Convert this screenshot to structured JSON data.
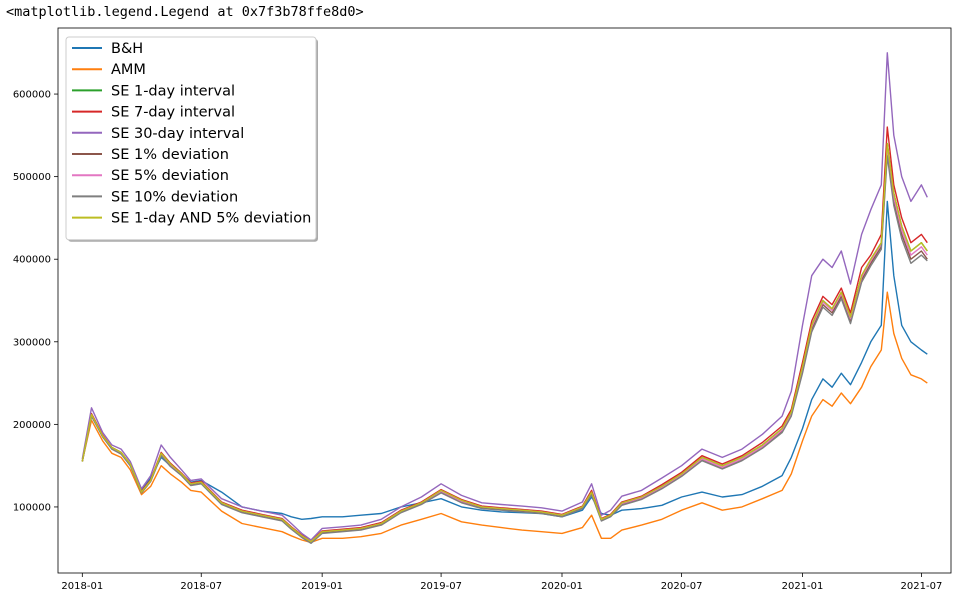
{
  "header": {
    "repr": "<matplotlib.legend.Legend at 0x7f3b78ffe8d0>"
  },
  "chart_data": {
    "type": "line",
    "title": "",
    "xlabel": "",
    "ylabel": "",
    "xlim": [
      "2017-11-25",
      "2021-08-15"
    ],
    "ylim": [
      20000,
      680000
    ],
    "grid": false,
    "legend_position": "top-left",
    "x_ticks": [
      "2018-01",
      "2018-07",
      "2019-01",
      "2019-07",
      "2020-01",
      "2020-07",
      "2021-01",
      "2021-07"
    ],
    "y_ticks": [
      100000,
      200000,
      300000,
      400000,
      500000,
      600000
    ],
    "y_tick_labels": [
      "100000",
      "200000",
      "300000",
      "400000",
      "500000",
      "600000"
    ],
    "x": [
      "2018-01-01",
      "2018-01-15",
      "2018-02-01",
      "2018-02-15",
      "2018-03-01",
      "2018-03-15",
      "2018-04-01",
      "2018-04-15",
      "2018-05-01",
      "2018-05-15",
      "2018-06-01",
      "2018-06-15",
      "2018-07-01",
      "2018-08-01",
      "2018-09-01",
      "2018-10-01",
      "2018-11-01",
      "2018-11-15",
      "2018-12-01",
      "2018-12-15",
      "2019-01-01",
      "2019-02-01",
      "2019-03-01",
      "2019-04-01",
      "2019-05-01",
      "2019-06-01",
      "2019-07-01",
      "2019-08-01",
      "2019-09-01",
      "2019-10-01",
      "2019-11-01",
      "2019-12-01",
      "2020-01-01",
      "2020-02-01",
      "2020-02-15",
      "2020-03-01",
      "2020-03-15",
      "2020-04-01",
      "2020-05-01",
      "2020-06-01",
      "2020-07-01",
      "2020-08-01",
      "2020-09-01",
      "2020-10-01",
      "2020-11-01",
      "2020-12-01",
      "2020-12-15",
      "2021-01-01",
      "2021-01-15",
      "2021-02-01",
      "2021-02-15",
      "2021-03-01",
      "2021-03-15",
      "2021-04-01",
      "2021-04-15",
      "2021-05-01",
      "2021-05-10",
      "2021-05-20",
      "2021-06-01",
      "2021-06-15",
      "2021-07-01",
      "2021-07-10"
    ],
    "series": [
      {
        "name": "B&H",
        "color": "#1f77b4",
        "values": [
          155000,
          210000,
          185000,
          170000,
          165000,
          150000,
          120000,
          135000,
          160000,
          150000,
          140000,
          130000,
          132000,
          118000,
          100000,
          95000,
          92000,
          88000,
          85000,
          86000,
          88000,
          88000,
          90000,
          92000,
          100000,
          105000,
          110000,
          100000,
          96000,
          94000,
          93000,
          92000,
          88000,
          96000,
          112000,
          92000,
          90000,
          96000,
          98000,
          102000,
          112000,
          118000,
          112000,
          115000,
          125000,
          138000,
          160000,
          195000,
          230000,
          255000,
          245000,
          262000,
          248000,
          275000,
          300000,
          320000,
          470000,
          380000,
          320000,
          300000,
          290000,
          285000
        ]
      },
      {
        "name": "AMM",
        "color": "#ff7f0e",
        "values": [
          155000,
          205000,
          180000,
          165000,
          160000,
          145000,
          115000,
          125000,
          150000,
          140000,
          130000,
          120000,
          118000,
          95000,
          80000,
          75000,
          70000,
          65000,
          60000,
          57000,
          62000,
          62000,
          64000,
          68000,
          78000,
          85000,
          92000,
          82000,
          78000,
          75000,
          72000,
          70000,
          68000,
          75000,
          90000,
          62000,
          62000,
          72000,
          78000,
          85000,
          96000,
          105000,
          96000,
          100000,
          110000,
          120000,
          140000,
          180000,
          210000,
          230000,
          222000,
          238000,
          225000,
          245000,
          270000,
          290000,
          360000,
          310000,
          280000,
          260000,
          255000,
          250000
        ]
      },
      {
        "name": "SE 1-day interval",
        "color": "#2ca02c",
        "values": [
          155000,
          212000,
          186000,
          172000,
          166000,
          152000,
          118000,
          132000,
          165000,
          152000,
          140000,
          128000,
          130000,
          105000,
          95000,
          90000,
          85000,
          75000,
          65000,
          58000,
          70000,
          72000,
          74000,
          80000,
          95000,
          105000,
          120000,
          108000,
          100000,
          98000,
          96000,
          94000,
          90000,
          100000,
          118000,
          85000,
          90000,
          105000,
          112000,
          125000,
          140000,
          160000,
          150000,
          160000,
          175000,
          195000,
          215000,
          270000,
          320000,
          350000,
          340000,
          360000,
          330000,
          380000,
          400000,
          420000,
          540000,
          480000,
          440000,
          410000,
          420000,
          410000
        ]
      },
      {
        "name": "SE 7-day interval",
        "color": "#d62728",
        "values": [
          155000,
          213000,
          187000,
          172000,
          166000,
          152000,
          119000,
          133000,
          166000,
          153000,
          141000,
          129000,
          131000,
          106000,
          96000,
          91000,
          86000,
          76000,
          66000,
          59000,
          71000,
          73000,
          75000,
          81000,
          96000,
          106000,
          121000,
          109000,
          101000,
          99000,
          97000,
          95000,
          91000,
          101000,
          120000,
          86000,
          91000,
          106000,
          113000,
          127000,
          142000,
          162000,
          152000,
          162000,
          178000,
          198000,
          218000,
          275000,
          325000,
          355000,
          345000,
          365000,
          335000,
          390000,
          405000,
          430000,
          560000,
          490000,
          450000,
          420000,
          430000,
          420000
        ]
      },
      {
        "name": "SE 30-day interval",
        "color": "#9467bd",
        "values": [
          158000,
          220000,
          190000,
          175000,
          170000,
          155000,
          122000,
          138000,
          175000,
          160000,
          145000,
          132000,
          134000,
          110000,
          100000,
          95000,
          90000,
          80000,
          68000,
          60000,
          74000,
          76000,
          78000,
          85000,
          100000,
          112000,
          128000,
          114000,
          105000,
          103000,
          101000,
          99000,
          95000,
          106000,
          128000,
          90000,
          96000,
          113000,
          120000,
          135000,
          150000,
          170000,
          160000,
          170000,
          188000,
          210000,
          240000,
          320000,
          380000,
          400000,
          390000,
          410000,
          370000,
          430000,
          460000,
          490000,
          650000,
          550000,
          500000,
          470000,
          490000,
          475000
        ]
      },
      {
        "name": "SE 1% deviation",
        "color": "#8c564b",
        "values": [
          155000,
          211000,
          185000,
          171000,
          165000,
          151000,
          117000,
          131000,
          163000,
          150000,
          139000,
          127000,
          129000,
          104000,
          94000,
          89000,
          84000,
          74000,
          64000,
          57000,
          69000,
          71000,
          73000,
          79000,
          94000,
          104000,
          118000,
          106000,
          99000,
          97000,
          95000,
          93000,
          89000,
          99000,
          116000,
          84000,
          89000,
          103000,
          110000,
          123000,
          138000,
          157000,
          147000,
          157000,
          172000,
          192000,
          212000,
          265000,
          315000,
          345000,
          335000,
          355000,
          325000,
          375000,
          395000,
          415000,
          530000,
          470000,
          430000,
          400000,
          410000,
          400000
        ]
      },
      {
        "name": "SE 5% deviation",
        "color": "#e377c2",
        "values": [
          155000,
          211000,
          186000,
          171000,
          165000,
          151000,
          118000,
          132000,
          164000,
          151000,
          140000,
          128000,
          130000,
          105000,
          95000,
          90000,
          85000,
          75000,
          65000,
          58000,
          70000,
          72000,
          74000,
          80000,
          95000,
          105000,
          119000,
          107000,
          100000,
          98000,
          96000,
          94000,
          90000,
          100000,
          117000,
          85000,
          90000,
          104000,
          111000,
          124000,
          139000,
          158000,
          148000,
          158000,
          173000,
          193000,
          213000,
          268000,
          318000,
          348000,
          338000,
          358000,
          328000,
          378000,
          398000,
          418000,
          535000,
          475000,
          435000,
          405000,
          415000,
          405000
        ]
      },
      {
        "name": "SE 10% deviation",
        "color": "#7f7f7f",
        "values": [
          155000,
          210000,
          185000,
          170000,
          164000,
          150000,
          117000,
          131000,
          162000,
          149000,
          138000,
          126000,
          128000,
          103000,
          93000,
          88000,
          83000,
          73000,
          63000,
          56000,
          68000,
          70000,
          72000,
          78000,
          93000,
          103000,
          117000,
          105000,
          98000,
          96000,
          94000,
          92000,
          88000,
          98000,
          115000,
          83000,
          88000,
          102000,
          109000,
          122000,
          137000,
          156000,
          146000,
          156000,
          171000,
          190000,
          210000,
          262000,
          312000,
          342000,
          332000,
          352000,
          322000,
          372000,
          392000,
          412000,
          525000,
          465000,
          425000,
          395000,
          405000,
          398000
        ]
      },
      {
        "name": "SE 1-day AND 5% deviation",
        "color": "#bcbd22",
        "values": [
          155000,
          212000,
          186000,
          172000,
          166000,
          152000,
          118000,
          132000,
          165000,
          152000,
          140000,
          128000,
          130000,
          105000,
          95000,
          90000,
          85000,
          75000,
          65000,
          58000,
          70000,
          72000,
          74000,
          80000,
          95000,
          105000,
          120000,
          108000,
          100000,
          98000,
          96000,
          94000,
          90000,
          100000,
          118000,
          85000,
          90000,
          105000,
          112000,
          125000,
          140000,
          160000,
          150000,
          160000,
          175000,
          195000,
          215000,
          270000,
          320000,
          350000,
          340000,
          360000,
          330000,
          380000,
          400000,
          420000,
          540000,
          480000,
          440000,
          410000,
          420000,
          410000
        ]
      }
    ]
  }
}
